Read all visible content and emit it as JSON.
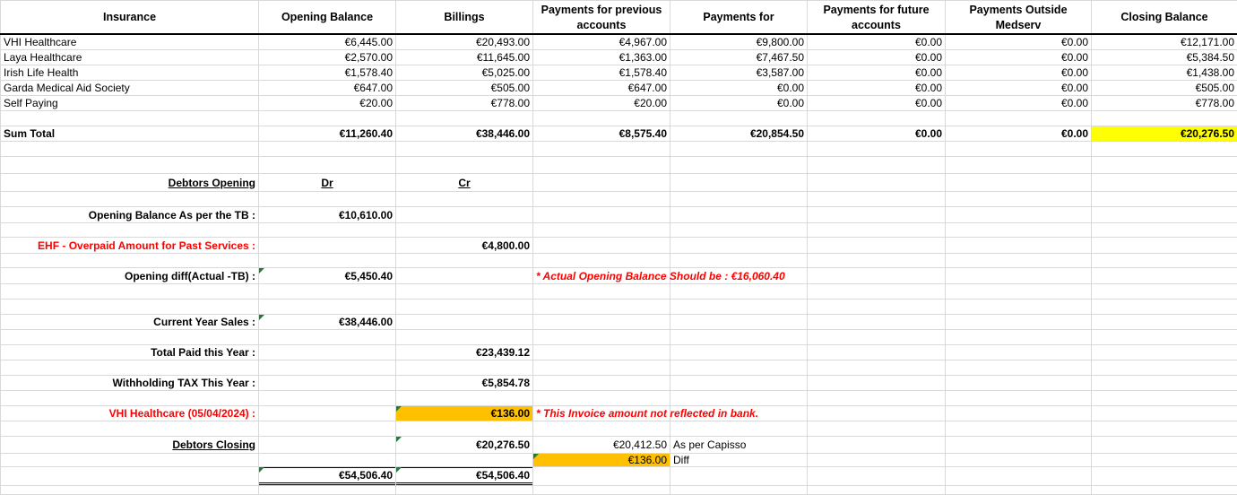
{
  "colors": {
    "yellow_highlight": "#FFFF00",
    "orange_highlight": "#FFC000",
    "warning_text": "#FF0000",
    "error_marker": "#1E7E34"
  },
  "insurance_table": {
    "headers": [
      "Insurance",
      "Opening Balance",
      "Billings",
      "Payments for previous accounts",
      "Payments for",
      "Payments for future accounts",
      "Payments Outside Medserv",
      "Closing Balance"
    ],
    "rows": [
      {
        "name": "VHI Healthcare",
        "values": [
          "€6,445.00",
          "€20,493.00",
          "€4,967.00",
          "€9,800.00",
          "€0.00",
          "€0.00",
          "€12,171.00"
        ]
      },
      {
        "name": "Laya Healthcare",
        "values": [
          "€2,570.00",
          "€11,645.00",
          "€1,363.00",
          "€7,467.50",
          "€0.00",
          "€0.00",
          "€5,384.50"
        ]
      },
      {
        "name": "Irish Life Health",
        "values": [
          "€1,578.40",
          "€5,025.00",
          "€1,578.40",
          "€3,587.00",
          "€0.00",
          "€0.00",
          "€1,438.00"
        ]
      },
      {
        "name": "Garda Medical Aid Society",
        "values": [
          "€647.00",
          "€505.00",
          "€647.00",
          "€0.00",
          "€0.00",
          "€0.00",
          "€505.00"
        ]
      },
      {
        "name": "Self Paying",
        "values": [
          "€20.00",
          "€778.00",
          "€20.00",
          "€0.00",
          "€0.00",
          "€0.00",
          "€778.00"
        ]
      }
    ],
    "sum_total": {
      "label": "Sum Total",
      "values": [
        "€11,260.40",
        "€38,446.00",
        "€8,575.40",
        "€20,854.50",
        "€0.00",
        "€0.00",
        "€20,276.50"
      ]
    }
  },
  "debtors": {
    "opening_title": "Debtors Opening",
    "dr_label": "Dr",
    "cr_label": "Cr",
    "opening_balance_tb": {
      "label": "Opening Balance As per the TB :",
      "dr": "€10,610.00"
    },
    "ehf_overpaid": {
      "label": "EHF - Overpaid Amount for Past Services :",
      "cr": "€4,800.00"
    },
    "opening_diff": {
      "label": "Opening diff(Actual -TB) :",
      "dr": "€5,450.40",
      "note": "* Actual Opening Balance Should be : €16,060.40"
    },
    "current_year_sales": {
      "label": "Current Year Sales :",
      "dr": "€38,446.00"
    },
    "total_paid": {
      "label": "Total Paid this Year :",
      "cr": "€23,439.12"
    },
    "withholding_tax": {
      "label": "Withholding TAX This Year :",
      "cr": "€5,854.78"
    },
    "vhi_invoice": {
      "label": "VHI Healthcare (05/04/2024) :",
      "cr": "€136.00",
      "note": "* This Invoice amount not reflected in bank."
    },
    "closing_title": "Debtors Closing",
    "closing_cr": "€20,276.50",
    "capisso_amount": "€20,412.50",
    "capisso_label": "As per Capisso",
    "diff_amount": "€136.00",
    "diff_label": "Diff",
    "total_dr": "€54,506.40",
    "total_cr": "€54,506.40"
  }
}
